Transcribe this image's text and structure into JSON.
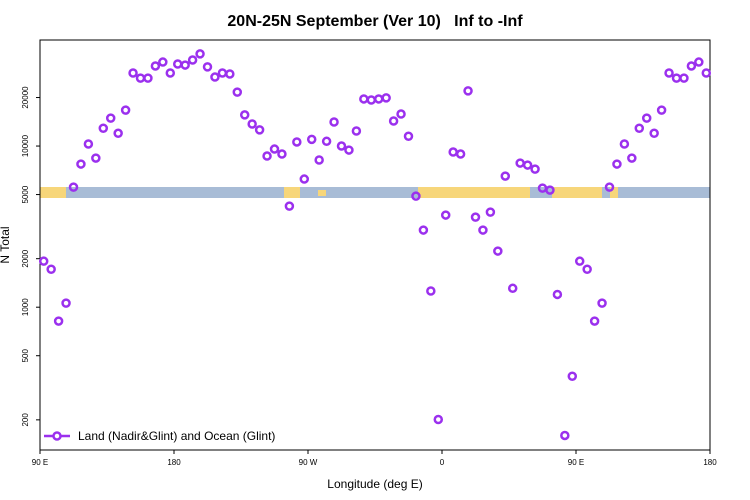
{
  "chart_data": {
    "type": "scatter",
    "title": "20N-25N September (Ver 10)   Inf to -Inf",
    "x_label": "Longitude (deg E)",
    "y_label": "N Total",
    "log_y": true,
    "xlim": [
      90,
      540
    ],
    "xticks": [
      {
        "value": 90,
        "label": "90 E"
      },
      {
        "value": 180,
        "label": "180"
      },
      {
        "value": 270,
        "label": "90 W"
      },
      {
        "value": 360,
        "label": "0"
      },
      {
        "value": 450,
        "label": "90 E"
      },
      {
        "value": 540,
        "label": "180"
      }
    ],
    "ylim": [
      130,
      45500
    ],
    "yticks": [
      200,
      500,
      1000,
      2000,
      5000,
      10000,
      20000
    ],
    "legend_position": "bottom-left",
    "series": [
      {
        "name": "Land (Nadir&Glint) and Ocean (Glint)",
        "color": "#9b30ee",
        "x": [
          92.5,
          97.5,
          102.5,
          107.5,
          112.5,
          117.5,
          122.5,
          127.5,
          132.5,
          137.5,
          142.5,
          147.5,
          152.5,
          157.5,
          162.5,
          167.5,
          172.5,
          177.5,
          182.5,
          187.5,
          192.5,
          197.5,
          202.5,
          207.5,
          212.5,
          217.5,
          222.5,
          227.5,
          232.5,
          237.5,
          242.5,
          247.5,
          252.5,
          257.5,
          262.5,
          267.5,
          272.5,
          277.5,
          282.5,
          287.5,
          292.5,
          297.5,
          302.5,
          307.5,
          312.5,
          317.5,
          322.5,
          327.5,
          332.5,
          337.5,
          342.5,
          347.5,
          352.5,
          357.5,
          362.5,
          367.5,
          372.5,
          377.5,
          382.5,
          387.5,
          392.5,
          397.5,
          402.5,
          407.5,
          412.5,
          417.5,
          422.5,
          427.5,
          432.5,
          437.5,
          442.5,
          447.5,
          452.5,
          457.5,
          462.5,
          467.5,
          472.5,
          477.5,
          482.5,
          487.5,
          492.5,
          497.5,
          502.5,
          507.5,
          512.5,
          517.5,
          522.5,
          527.5,
          532.5,
          537.5
        ],
        "values": [
          1930,
          1720,
          820,
          1060,
          5560,
          7730,
          10300,
          8420,
          12900,
          14900,
          12000,
          16700,
          28400,
          26400,
          26400,
          31400,
          33200,
          28400,
          32300,
          31800,
          34200,
          37300,
          31000,
          26800,
          28400,
          28000,
          21600,
          15600,
          13700,
          12600,
          8670,
          9580,
          8920,
          4240,
          10600,
          6240,
          11000,
          8190,
          10700,
          14100,
          10000,
          9440,
          12400,
          19600,
          19300,
          19600,
          19900,
          14300,
          15800,
          11500,
          4890,
          3010,
          1260,
          201,
          3730,
          9180,
          8920,
          22000,
          3620,
          3010,
          3890,
          2230,
          6510,
          1310,
          7840,
          7620,
          7190,
          5480,
          5330,
          1200,
          160,
          373,
          1930,
          1720,
          820,
          1060,
          5560,
          7730,
          10300,
          8420,
          12900,
          14900,
          12000,
          16700,
          28400,
          26400,
          26400,
          31400,
          33200,
          28400
        ]
      }
    ]
  }
}
